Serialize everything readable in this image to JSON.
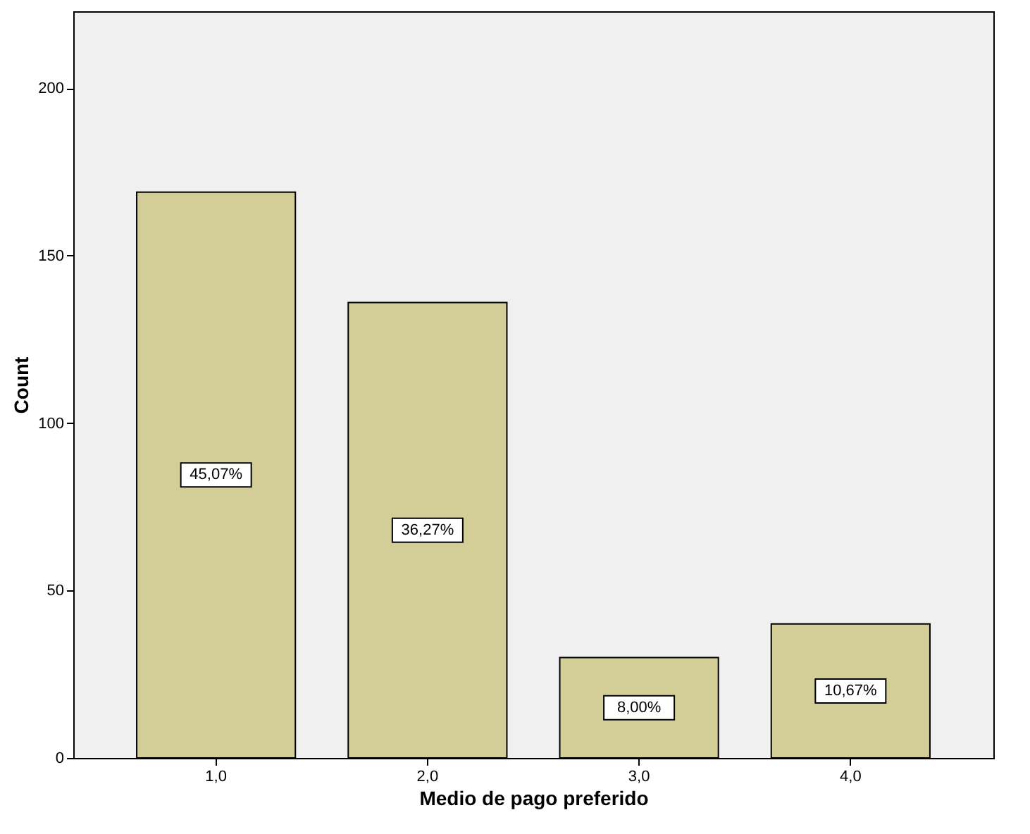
{
  "chart_data": {
    "type": "bar",
    "xlabel": "Medio de pago preferido",
    "ylabel": "Count",
    "categories": [
      "1,0",
      "2,0",
      "3,0",
      "4,0"
    ],
    "values": [
      169,
      136,
      30,
      40
    ],
    "annotations": [
      "45,07%",
      "36,27%",
      "8,00%",
      "10,67%"
    ],
    "color": "#d3ce97",
    "ylim": [
      0,
      223
    ],
    "yticks": [
      0,
      50,
      100,
      150,
      200
    ],
    "grid": false
  }
}
